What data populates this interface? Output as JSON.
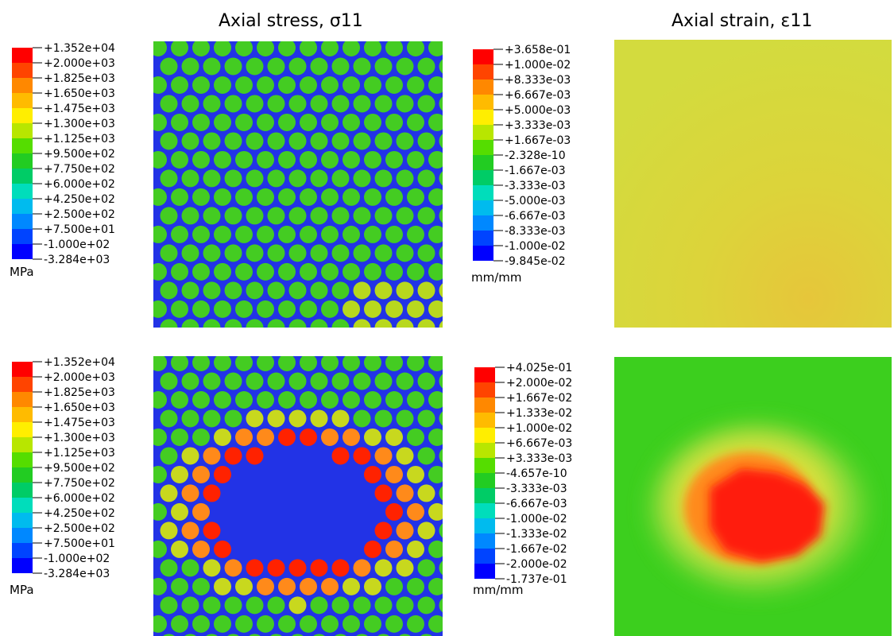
{
  "titles": {
    "stress": "Axial stress, σ11",
    "strain": "Axial strain, ε11"
  },
  "legends": {
    "stress_top": {
      "labels": [
        "+1.352e+04",
        "+2.000e+03",
        "+1.825e+03",
        "+1.650e+03",
        "+1.475e+03",
        "+1.300e+03",
        "+1.125e+03",
        "+9.500e+02",
        "+7.750e+02",
        "+6.000e+02",
        "+4.250e+02",
        "+2.500e+02",
        "+7.500e+01",
        "-1.000e+02",
        "-3.284e+03"
      ],
      "unit": "MPa"
    },
    "strain_top": {
      "labels": [
        "+3.658e-01",
        "+1.000e-02",
        "+8.333e-03",
        "+6.667e-03",
        "+5.000e-03",
        "+3.333e-03",
        "+1.667e-03",
        "-2.328e-10",
        "-1.667e-03",
        "-3.333e-03",
        "-5.000e-03",
        "-6.667e-03",
        "-8.333e-03",
        "-1.000e-02",
        "-9.845e-02"
      ],
      "unit": "mm/mm"
    },
    "stress_bottom": {
      "labels": [
        "+1.352e+04",
        "+2.000e+03",
        "+1.825e+03",
        "+1.650e+03",
        "+1.475e+03",
        "+1.300e+03",
        "+1.125e+03",
        "+9.500e+02",
        "+7.750e+02",
        "+6.000e+02",
        "+4.250e+02",
        "+2.500e+02",
        "+7.500e+01",
        "-1.000e+02",
        "-3.284e+03"
      ],
      "unit": "MPa"
    },
    "strain_bottom": {
      "labels": [
        "+4.025e-01",
        "+2.000e-02",
        "+1.667e-02",
        "+1.333e-02",
        "+1.000e-02",
        "+6.667e-03",
        "+3.333e-03",
        "-4.657e-10",
        "-3.333e-03",
        "-6.667e-03",
        "-1.000e-02",
        "-1.333e-02",
        "-1.667e-02",
        "-2.000e-02",
        "-1.737e-01"
      ],
      "unit": "mm/mm"
    }
  },
  "colormap": [
    "#ff0000",
    "#ff4400",
    "#ff8800",
    "#ffbb00",
    "#ffee00",
    "#b8e600",
    "#55dd00",
    "#22cc22",
    "#00cc66",
    "#00ddbb",
    "#00bbee",
    "#0088ff",
    "#0044ff",
    "#0000ff"
  ],
  "colors": {
    "matrix_blue": "#2233e6",
    "fiber_green": "#44cc22",
    "strain_uniform": "#d8d83a",
    "strain_background_green": "#3ccf1e"
  }
}
